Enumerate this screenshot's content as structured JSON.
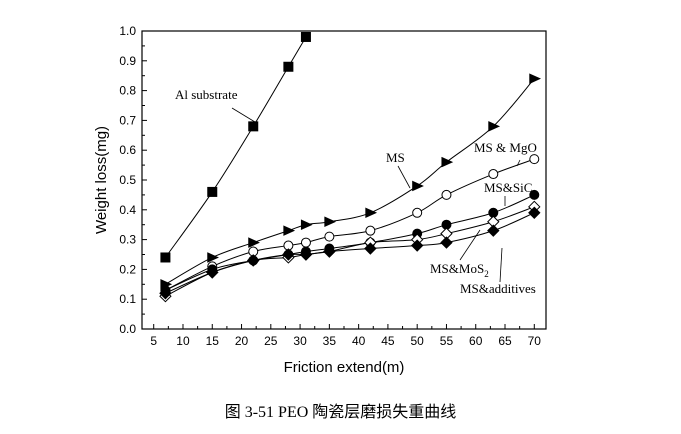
{
  "chart_data": {
    "type": "line",
    "title": "",
    "xlabel": "Friction extend(m)",
    "ylabel": "Weight loss(mg)",
    "xlim": [
      3,
      72
    ],
    "ylim": [
      0,
      1.0
    ],
    "xticks": [
      5,
      10,
      15,
      20,
      25,
      30,
      35,
      40,
      45,
      50,
      55,
      60,
      65,
      70
    ],
    "yticks": [
      "0.0",
      "0.1",
      "0.2",
      "0.3",
      "0.4",
      "0.5",
      "0.6",
      "0.7",
      "0.8",
      "0.9",
      "1.0"
    ],
    "grid": false,
    "legend": "none (inline annotations with leader lines)",
    "series": [
      {
        "name": "Al substrate",
        "marker": "filled-square",
        "x": [
          7,
          15,
          22,
          28,
          31
        ],
        "y": [
          0.24,
          0.46,
          0.68,
          0.88,
          0.98
        ]
      },
      {
        "name": "MS",
        "marker": "filled-triangle-right",
        "x": [
          7,
          15,
          22,
          28,
          31,
          35,
          42,
          50,
          55,
          63,
          70
        ],
        "y": [
          0.15,
          0.24,
          0.29,
          0.33,
          0.35,
          0.36,
          0.39,
          0.48,
          0.56,
          0.68,
          0.84
        ]
      },
      {
        "name": "MS & MgO",
        "marker": "open-circle",
        "x": [
          7,
          15,
          22,
          28,
          31,
          35,
          42,
          50,
          55,
          63,
          70
        ],
        "y": [
          0.13,
          0.21,
          0.26,
          0.28,
          0.29,
          0.31,
          0.33,
          0.39,
          0.45,
          0.52,
          0.57
        ]
      },
      {
        "name": "MS&SiC",
        "marker": "filled-circle",
        "x": [
          7,
          15,
          22,
          28,
          31,
          35,
          42,
          50,
          55,
          63,
          70
        ],
        "y": [
          0.13,
          0.2,
          0.23,
          0.25,
          0.26,
          0.27,
          0.29,
          0.32,
          0.35,
          0.39,
          0.45
        ]
      },
      {
        "name": "MS&MoS2",
        "marker": "open-diamond",
        "x": [
          7,
          15,
          22,
          28,
          31,
          35,
          42,
          50,
          55,
          63,
          70
        ],
        "y": [
          0.11,
          0.19,
          0.23,
          0.24,
          0.25,
          0.26,
          0.29,
          0.3,
          0.32,
          0.36,
          0.41
        ]
      },
      {
        "name": "MS&additives",
        "marker": "filled-diamond",
        "x": [
          7,
          15,
          22,
          28,
          31,
          35,
          42,
          50,
          55,
          63,
          70
        ],
        "y": [
          0.12,
          0.19,
          0.23,
          0.25,
          0.25,
          0.26,
          0.27,
          0.28,
          0.29,
          0.33,
          0.39
        ]
      }
    ]
  },
  "caption": "图 3-51 PEO 陶瓷层磨损失重曲线"
}
